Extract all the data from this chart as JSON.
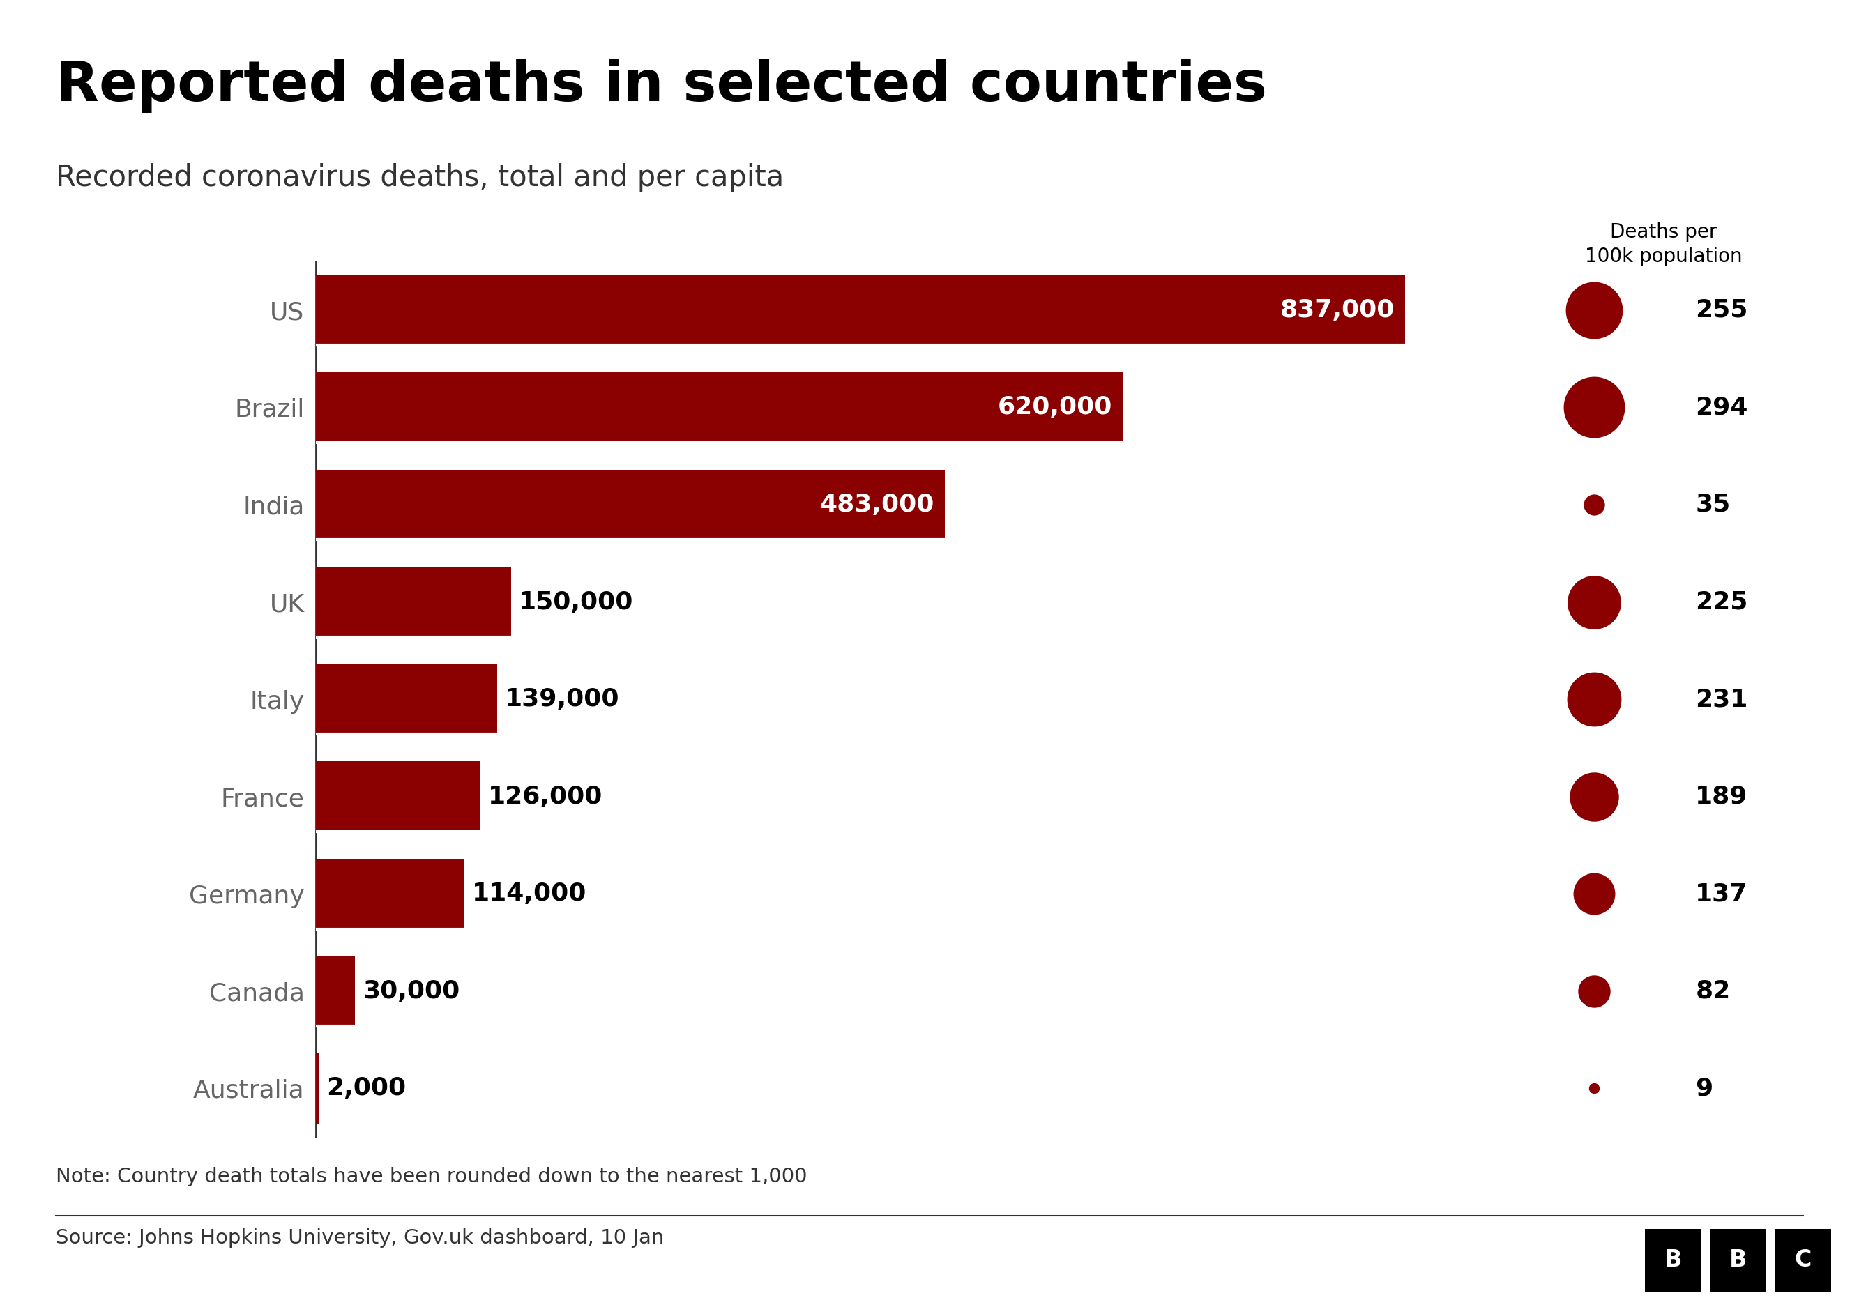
{
  "title": "Reported deaths in selected countries",
  "subtitle": "Recorded coronavirus deaths, total and per capita",
  "note": "Note: Country death totals have been rounded down to the nearest 1,000",
  "source": "Source: Johns Hopkins University, Gov.uk dashboard, 10 Jan",
  "countries": [
    "US",
    "Brazil",
    "India",
    "UK",
    "Italy",
    "France",
    "Germany",
    "Canada",
    "Australia"
  ],
  "total_deaths": [
    837000,
    620000,
    483000,
    150000,
    139000,
    126000,
    114000,
    30000,
    2000
  ],
  "total_labels": [
    "837,000",
    "620,000",
    "483,000",
    "150,000",
    "139,000",
    "126,000",
    "114,000",
    "30,000",
    "2,000"
  ],
  "label_inside": [
    true,
    true,
    true,
    false,
    false,
    false,
    false,
    false,
    false
  ],
  "per_capita": [
    255,
    294,
    35,
    225,
    231,
    189,
    137,
    82,
    9
  ],
  "per_capita_labels": [
    "255",
    "294",
    "35",
    "225",
    "231",
    "189",
    "137",
    "82",
    "9"
  ],
  "bar_color": "#8B0000",
  "dot_color": "#8B0000",
  "background_color": "#ffffff",
  "country_label_color": "#666666",
  "title_color": "#000000",
  "dot_header": "Deaths per\n100k population",
  "max_per_capita": 294,
  "threshold_inside": 200000
}
